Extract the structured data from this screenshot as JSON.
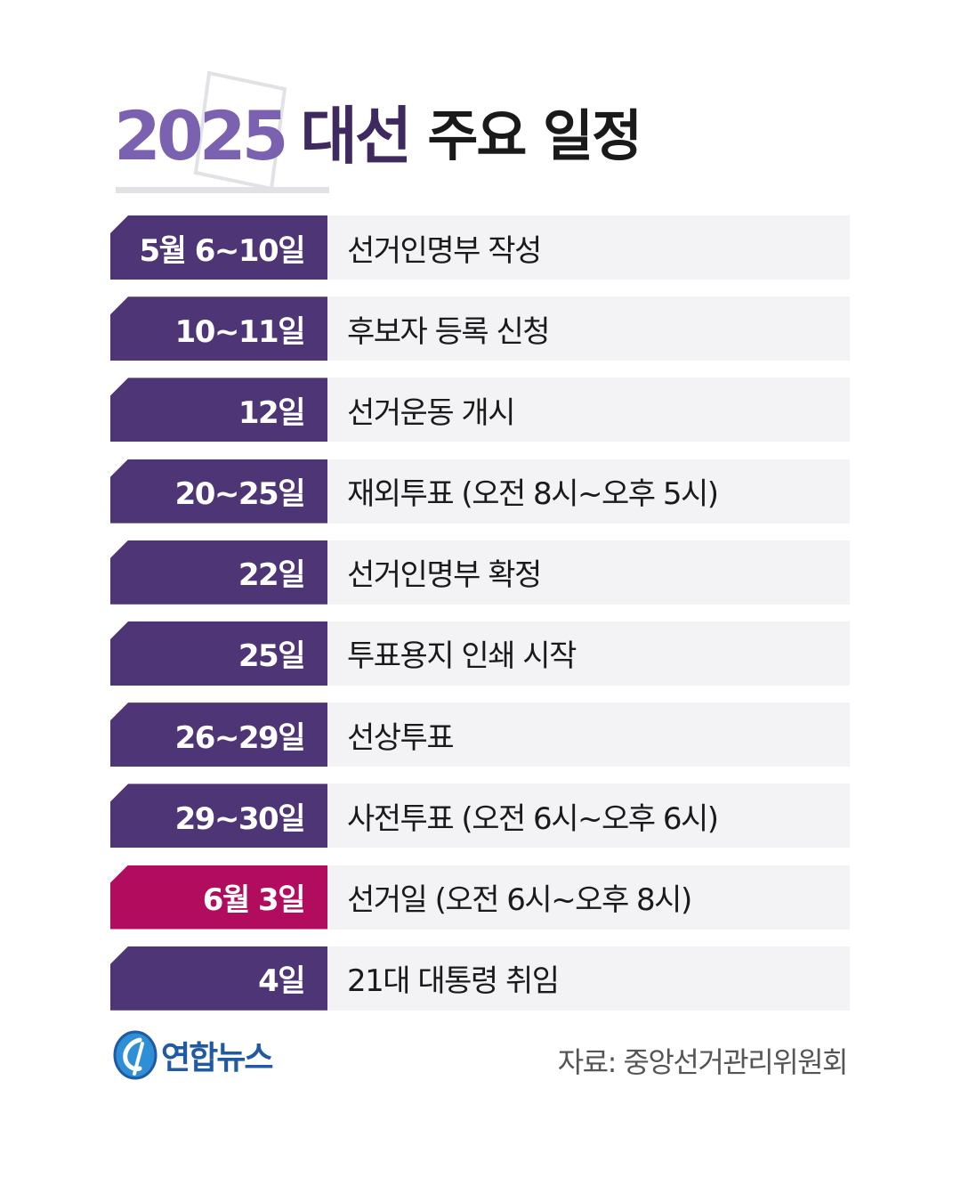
{
  "header": {
    "title_year": "2025",
    "title_election": "대선",
    "title_rest": "주요 일정"
  },
  "schedule": [
    {
      "date": "5월 6~10일",
      "event": "선거인명부 작성",
      "highlight": false
    },
    {
      "date": "10~11일",
      "event": "후보자 등록 신청",
      "highlight": false
    },
    {
      "date": "12일",
      "event": "선거운동 개시",
      "highlight": false
    },
    {
      "date": "20~25일",
      "event": "재외투표 (오전 8시~오후 5시)",
      "highlight": false
    },
    {
      "date": "22일",
      "event": "선거인명부 확정",
      "highlight": false
    },
    {
      "date": "25일",
      "event": "투표용지 인쇄 시작",
      "highlight": false
    },
    {
      "date": "26~29일",
      "event": "선상투표",
      "highlight": false
    },
    {
      "date": "29~30일",
      "event": "사전투표 (오전 6시~오후 6시)",
      "highlight": false
    },
    {
      "date": "6월 3일",
      "event": "선거일 (오전 6시~오후 8시)",
      "highlight": true
    },
    {
      "date": "4일",
      "event": "21대 대통령 취임",
      "highlight": false
    }
  ],
  "footer": {
    "logo_text": "연합뉴스",
    "logo_icon": "yonhap-logo-icon",
    "source": "자료: 중앙선거관리위원회"
  },
  "colors": {
    "date_cell": "#4e3575",
    "highlight_cell": "#b10c5e",
    "event_cell": "#f3f3f5",
    "title_year": "#7b62b0",
    "title_election": "#3f2a5f",
    "logo": "#1f5aa3"
  }
}
